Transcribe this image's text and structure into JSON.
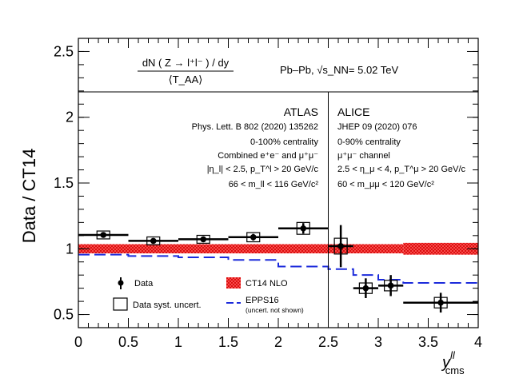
{
  "chart_data": {
    "type": "scatter",
    "ylabel": "Data / CT14",
    "xlabel_main": "y",
    "xlabel_sup": "ll",
    "xlabel_sub": "cms",
    "xlim": [
      0,
      4
    ],
    "ylim": [
      0.4,
      2.6
    ],
    "xticks": [
      "0",
      "0.5",
      "1",
      "1.5",
      "2",
      "2.5",
      "3",
      "3.5",
      "4"
    ],
    "yticks": [
      "0.5",
      "1",
      "1.5",
      "2",
      "2.5"
    ],
    "xtick_values": [
      0,
      0.5,
      1,
      1.5,
      2,
      2.5,
      3,
      3.5,
      4
    ],
    "ytick_values": [
      0.5,
      1,
      1.5,
      2,
      2.5
    ],
    "formula": {
      "numerator": "dN ( Z → l⁺l⁻ ) / dy",
      "denominator": "⟨T_AA⟩"
    },
    "collision": "Pb–Pb, √s_NN= 5.02 TeV",
    "divider_x": 2.5,
    "atlas": {
      "name": "ATLAS",
      "lines": [
        "Phys. Lett. B 802 (2020) 135262",
        "0-100% centrality",
        "Combined e⁺e⁻ and μ⁺μ⁻",
        "|η_l| < 2.5, p_T^l > 20 GeV/c",
        "66 < m_ll < 116 GeV/c²"
      ],
      "points": [
        {
          "x": 0.25,
          "xlo": 0.0,
          "xhi": 0.5,
          "y": 1.105,
          "stat": 0.015,
          "syst": 0.03
        },
        {
          "x": 0.75,
          "xlo": 0.5,
          "xhi": 1.0,
          "y": 1.06,
          "stat": 0.015,
          "syst": 0.03
        },
        {
          "x": 1.25,
          "xlo": 1.0,
          "xhi": 1.5,
          "y": 1.072,
          "stat": 0.015,
          "syst": 0.03
        },
        {
          "x": 1.75,
          "xlo": 1.5,
          "xhi": 2.0,
          "y": 1.088,
          "stat": 0.025,
          "syst": 0.035
        },
        {
          "x": 2.25,
          "xlo": 2.0,
          "xhi": 2.5,
          "y": 1.155,
          "stat": 0.04,
          "syst": 0.045
        }
      ]
    },
    "alice": {
      "name": "ALICE",
      "lines": [
        "JHEP 09 (2020) 076",
        "0-90% centrality",
        "μ⁺μ⁻ channel",
        "2.5 < η_μ < 4, p_T^μ > 20 GeV/c",
        "60 < m_μμ < 120 GeV/c²"
      ],
      "points": [
        {
          "x": 2.625,
          "xlo": 2.5,
          "xhi": 2.75,
          "y": 1.02,
          "stat": 0.16,
          "syst": 0.06
        },
        {
          "x": 2.875,
          "xlo": 2.75,
          "xhi": 3.0,
          "y": 0.7,
          "stat": 0.075,
          "syst": 0.04
        },
        {
          "x": 3.125,
          "xlo": 3.0,
          "xhi": 3.25,
          "y": 0.72,
          "stat": 0.08,
          "syst": 0.04
        },
        {
          "x": 3.625,
          "xlo": 3.25,
          "xhi": 4.0,
          "y": 0.59,
          "stat": 0.075,
          "syst": 0.04
        }
      ]
    },
    "ct14_band": {
      "ylo": 0.965,
      "yhi": 1.035,
      "ylo_wide": 0.955,
      "yhi_wide": 1.045,
      "wide_from": 3.25
    },
    "epps16": [
      {
        "xlo": 0.0,
        "xhi": 0.5,
        "y": 0.955
      },
      {
        "xlo": 0.5,
        "xhi": 1.0,
        "y": 0.945
      },
      {
        "xlo": 1.0,
        "xhi": 1.5,
        "y": 0.935
      },
      {
        "xlo": 1.5,
        "xhi": 2.0,
        "y": 0.915
      },
      {
        "xlo": 2.0,
        "xhi": 2.5,
        "y": 0.865
      },
      {
        "xlo": 2.5,
        "xhi": 2.75,
        "y": 0.845
      },
      {
        "xlo": 2.75,
        "xhi": 3.0,
        "y": 0.8
      },
      {
        "xlo": 3.0,
        "xhi": 3.25,
        "y": 0.765
      },
      {
        "xlo": 3.25,
        "xhi": 4.0,
        "y": 0.74
      }
    ],
    "legend": {
      "data": "Data",
      "syst": "Data syst. uncert.",
      "ct14": "CT14 NLO",
      "epps": "EPPS16",
      "epps_note": "(uncert. not shown)"
    },
    "colors": {
      "data": "#000000",
      "ct14": "#ff3030",
      "epps": "#1c2bdb"
    }
  }
}
